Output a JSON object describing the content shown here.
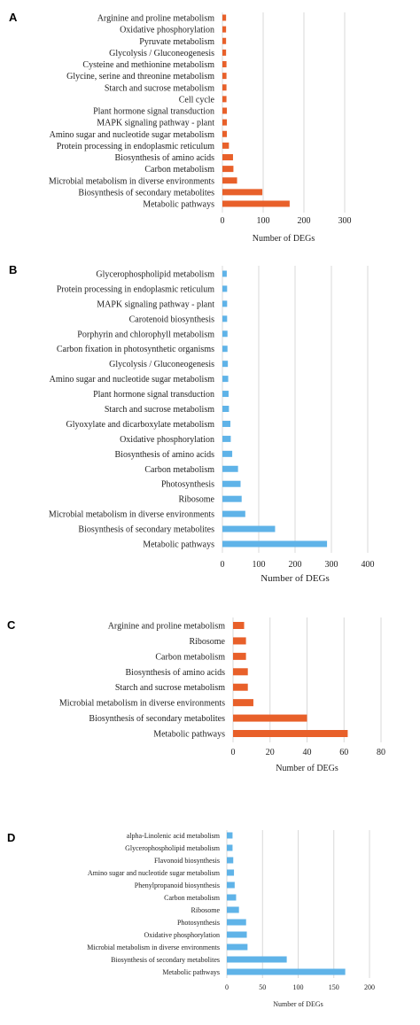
{
  "colors": {
    "orange": "#E8602A",
    "blue": "#5FB3E8",
    "grid": "#D9D9D9",
    "text": "#222222"
  },
  "chart_data": [
    {
      "type": "bar",
      "panel": "A",
      "color": "orange",
      "xlabel": "Number of DEGs",
      "xlim": [
        0,
        300
      ],
      "xticks": [
        0,
        100,
        200,
        300
      ],
      "categories": [
        "Arginine and proline metabolism",
        "Oxidative phosphorylation",
        "Pyruvate metabolism",
        "Glycolysis / Gluconeogenesis",
        "Cysteine and methionine metabolism",
        "Glycine, serine and threonine metabolism",
        "Starch and sucrose metabolism",
        "Cell cycle",
        "Plant hormone signal transduction",
        "MAPK signaling pathway - plant",
        "Amino sugar and nucleotide sugar metabolism",
        "Protein processing in endoplasmic reticulum",
        "Biosynthesis of amino acids",
        "Carbon metabolism",
        "Microbial metabolism in diverse environments",
        "Biosynthesis of secondary metabolites",
        "Metabolic pathways"
      ],
      "values": [
        9,
        9,
        9,
        9,
        10,
        10,
        10,
        10,
        11,
        11,
        11,
        16,
        26,
        27,
        36,
        98,
        165
      ]
    },
    {
      "type": "bar",
      "panel": "B",
      "color": "blue",
      "xlabel": "Number of DEGs",
      "xlim": [
        0,
        400
      ],
      "xticks": [
        0,
        100,
        200,
        300,
        400
      ],
      "categories": [
        "Glycerophospholipid metabolism",
        "Protein processing in endoplasmic reticulum",
        "MAPK signaling pathway - plant",
        "Carotenoid biosynthesis",
        "Porphyrin and chlorophyll metabolism",
        "Carbon fixation in photosynthetic organisms",
        "Glycolysis / Gluconeogenesis",
        "Amino sugar and nucleotide sugar metabolism",
        "Plant hormone signal transduction",
        "Starch and sucrose metabolism",
        "Glyoxylate and dicarboxylate metabolism",
        "Oxidative phosphorylation",
        "Biosynthesis of amino acids",
        "Carbon metabolism",
        "Photosynthesis",
        "Ribosome",
        "Microbial metabolism in diverse environments",
        "Biosynthesis of secondary metabolites",
        "Metabolic pathways"
      ],
      "values": [
        12,
        13,
        13,
        13,
        14,
        14,
        15,
        16,
        17,
        18,
        22,
        23,
        27,
        43,
        50,
        53,
        63,
        145,
        288
      ]
    },
    {
      "type": "bar",
      "panel": "C",
      "color": "orange",
      "xlabel": "Number of DEGs",
      "xlim": [
        0,
        80
      ],
      "xticks": [
        0,
        20,
        40,
        60,
        80
      ],
      "categories": [
        "Arginine and proline metabolism",
        "Ribosome",
        "Carbon metabolism",
        "Biosynthesis of amino acids",
        "Starch and sucrose metabolism",
        "Microbial metabolism in diverse environments",
        "Biosynthesis of secondary metabolites",
        "Metabolic pathways"
      ],
      "values": [
        6,
        7,
        7,
        8,
        8,
        11,
        40,
        62
      ]
    },
    {
      "type": "bar",
      "panel": "D",
      "color": "blue",
      "xlabel": "Number of DEGs",
      "xlim": [
        0,
        200
      ],
      "xticks": [
        0,
        50,
        100,
        150,
        200
      ],
      "categories": [
        "alpha-Linolenic acid metabolism",
        "Glycerophospholipid metabolism",
        "Flavonoid biosynthesis",
        "Amino sugar and nucleotide sugar metabolism",
        "Phenylpropanoid biosynthesis",
        "Carbon metabolism",
        "Ribosome",
        "Photosynthesis",
        "Oxidative phosphorylation",
        "Microbial metabolism in diverse environments",
        "Biosynthesis of secondary metabolites",
        "Metabolic pathways"
      ],
      "values": [
        8,
        8,
        9,
        10,
        11,
        13,
        17,
        27,
        28,
        29,
        84,
        166
      ]
    }
  ]
}
